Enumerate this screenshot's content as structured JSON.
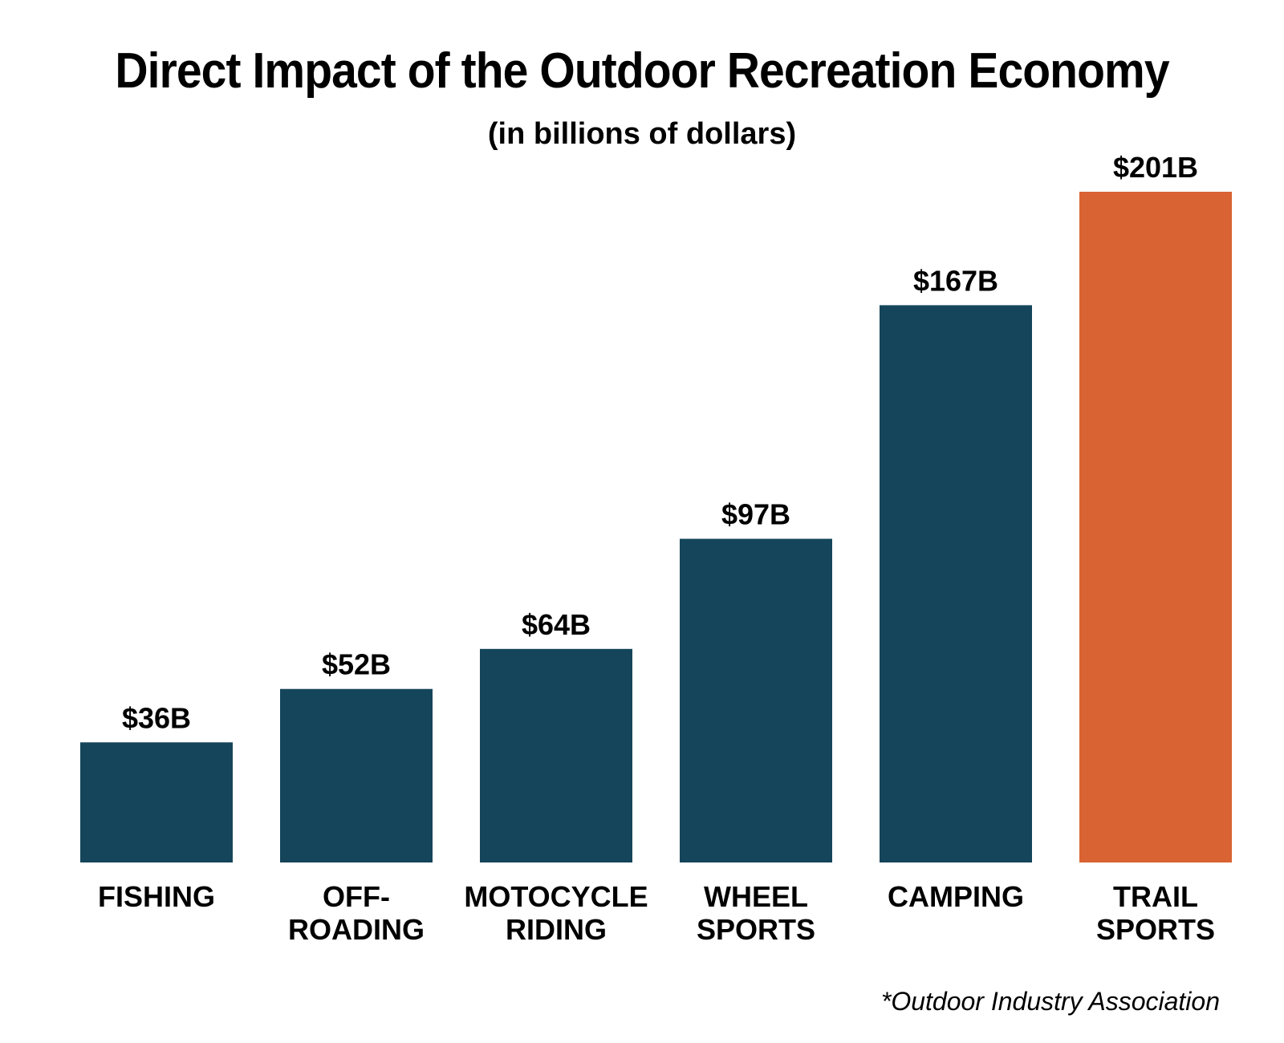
{
  "chart_data": {
    "type": "bar",
    "title": "Direct Impact of the Outdoor Recreation Economy",
    "subtitle": "(in billions of dollars)",
    "categories": [
      [
        "FISHING"
      ],
      [
        "OFF-",
        "ROADING"
      ],
      [
        "MOTOCYCLE",
        "RIDING"
      ],
      [
        "WHEEL",
        "SPORTS"
      ],
      [
        "CAMPING"
      ],
      [
        "TRAIL",
        "SPORTS"
      ]
    ],
    "values": [
      36,
      52,
      64,
      97,
      167,
      201
    ],
    "value_labels": [
      "$36B",
      "$52B",
      "$64B",
      "$97B",
      "$167B",
      "$201B"
    ],
    "bar_colors": [
      "#15455a",
      "#15455a",
      "#15455a",
      "#15455a",
      "#15455a",
      "#d96332"
    ],
    "highlight_color": "#d96332",
    "base_color": "#15455a",
    "grid": false,
    "legend": "none"
  },
  "footer": {
    "source": "*Outdoor Industry Association"
  }
}
